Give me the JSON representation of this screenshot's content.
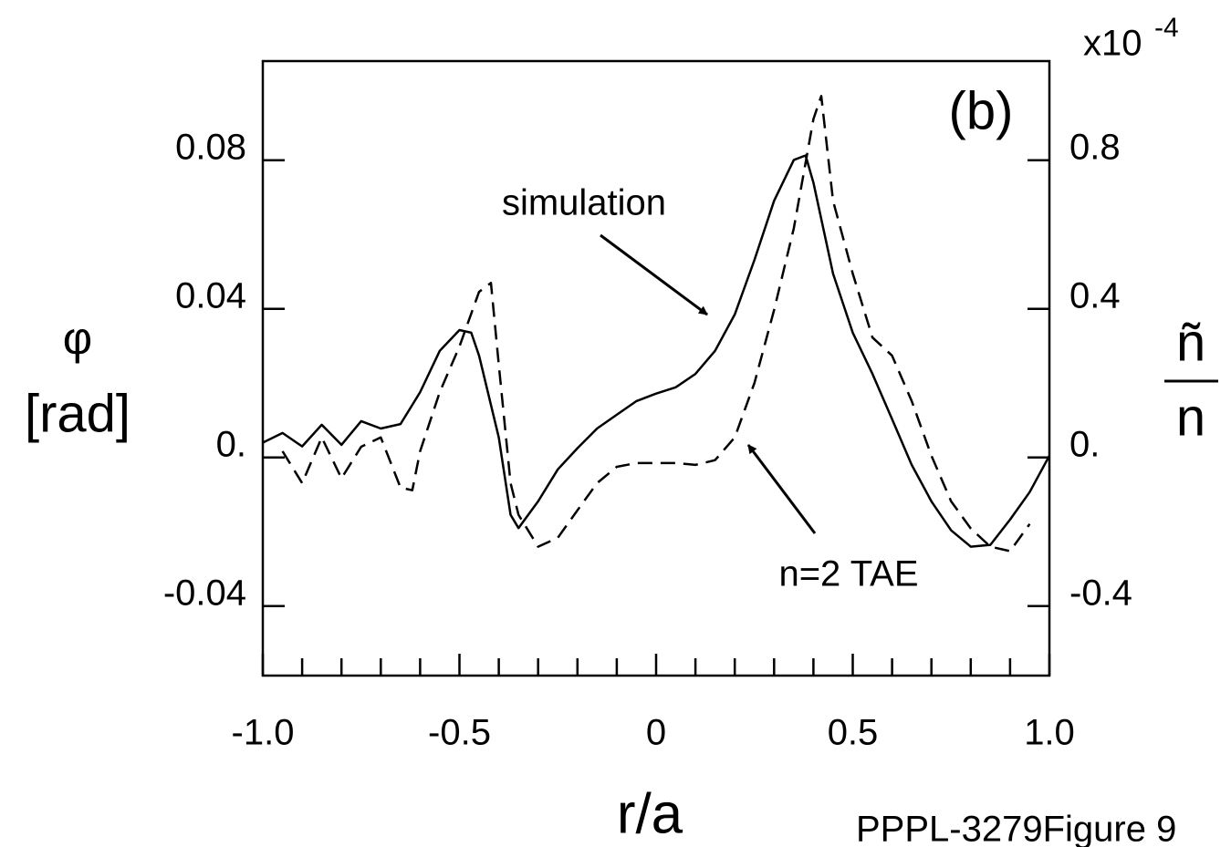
{
  "chart_data": {
    "type": "line",
    "xlabel": "r/a",
    "ylabel": [
      "φ",
      "[rad]"
    ],
    "y2label": {
      "numerator": "ñ",
      "denominator": "n"
    },
    "y2_multiplier": {
      "base": "x10",
      "exponent": "-4"
    },
    "panel_label": "(b)",
    "footer": "PPPL-3279Figure 9",
    "xlim": [
      -1,
      1
    ],
    "xticks": [
      {
        "value": -1,
        "label": "-1.0"
      },
      -0.5,
      0,
      0.5,
      {
        "value": 1,
        "label": "1.0"
      }
    ],
    "xminorticks": [
      -0.9,
      -0.8,
      -0.7,
      -0.6,
      -0.4,
      -0.3,
      -0.2,
      -0.1,
      0.1,
      0.2,
      0.3,
      0.4,
      0.6,
      0.7,
      0.8,
      0.9
    ],
    "ylim": [
      -0.0587,
      0.1067
    ],
    "yticks": [
      0.08,
      0.04,
      {
        "value": 0,
        "label": "0."
      },
      -0.04
    ],
    "y2lim": [
      -0.587,
      1.067
    ],
    "y2ticks": [
      0.8,
      0.4,
      {
        "value": 0,
        "label": "0."
      },
      -0.4
    ],
    "series": [
      {
        "name": "simulation",
        "color": "#000000",
        "dash": false,
        "x": [
          -1.0,
          -0.95,
          -0.9,
          -0.85,
          -0.8,
          -0.75,
          -0.7,
          -0.65,
          -0.6,
          -0.55,
          -0.5,
          -0.47,
          -0.45,
          -0.4,
          -0.37,
          -0.35,
          -0.3,
          -0.25,
          -0.2,
          -0.15,
          -0.1,
          -0.05,
          0,
          0.05,
          0.1,
          0.15,
          0.2,
          0.25,
          0.3,
          0.35,
          0.38,
          0.4,
          0.45,
          0.5,
          0.55,
          0.6,
          0.65,
          0.7,
          0.75,
          0.8,
          0.85,
          0.9,
          0.95,
          1.0
        ],
        "values": [
          0.004,
          0.0066,
          0.003,
          0.0088,
          0.0034,
          0.0098,
          0.0078,
          0.009,
          0.0176,
          0.0287,
          0.0343,
          0.0336,
          0.0274,
          0.0054,
          -0.0154,
          -0.019,
          -0.0118,
          -0.0032,
          0.0025,
          0.0078,
          0.0115,
          0.0152,
          0.0172,
          0.0189,
          0.0225,
          0.0287,
          0.0385,
          0.0532,
          0.0691,
          0.0801,
          0.0813,
          0.074,
          0.0495,
          0.0336,
          0.0225,
          0.0103,
          -0.002,
          -0.0118,
          -0.0196,
          -0.024,
          -0.0235,
          -0.0167,
          -0.0093,
          0.0005
        ]
      },
      {
        "name": "n=2 TAE",
        "color": "#000000",
        "dash": true,
        "axis": "y2",
        "x": [
          -0.95,
          -0.9,
          -0.85,
          -0.8,
          -0.75,
          -0.7,
          -0.65,
          -0.62,
          -0.6,
          -0.55,
          -0.5,
          -0.45,
          -0.42,
          -0.4,
          -0.37,
          -0.35,
          -0.3,
          -0.25,
          -0.2,
          -0.15,
          -0.1,
          -0.05,
          0,
          0.05,
          0.1,
          0.15,
          0.2,
          0.25,
          0.3,
          0.35,
          0.4,
          0.42,
          0.45,
          0.5,
          0.55,
          0.6,
          0.65,
          0.7,
          0.75,
          0.8,
          0.85,
          0.9,
          0.95
        ],
        "values": [
          0.017,
          -0.069,
          0.054,
          -0.056,
          0.029,
          0.054,
          -0.081,
          -0.088,
          0.017,
          0.176,
          0.299,
          0.446,
          0.47,
          0.25,
          -0.069,
          -0.154,
          -0.24,
          -0.216,
          -0.142,
          -0.069,
          -0.025,
          -0.015,
          -0.015,
          -0.015,
          -0.02,
          -0.007,
          0.054,
          0.201,
          0.397,
          0.617,
          0.911,
          0.973,
          0.691,
          0.495,
          0.323,
          0.274,
          0.152,
          0.005,
          -0.118,
          -0.191,
          -0.24,
          -0.252,
          -0.179
        ]
      }
    ]
  }
}
